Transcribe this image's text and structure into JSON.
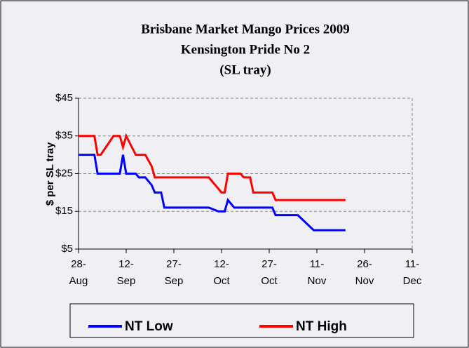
{
  "chart_data": {
    "type": "line",
    "title": [
      "Brisbane Market Mango Prices 2009",
      "Kensington Pride No 2",
      "(SL tray)"
    ],
    "ylabel": "$ per SL tray",
    "xlim": [
      "2009-08-28",
      "2009-12-11"
    ],
    "xticks": [
      {
        "value": "2009-08-28",
        "label": "28-Aug"
      },
      {
        "value": "2009-09-12",
        "label": "12-Sep"
      },
      {
        "value": "2009-09-27",
        "label": "27-Sep"
      },
      {
        "value": "2009-10-12",
        "label": "12-Oct"
      },
      {
        "value": "2009-10-27",
        "label": "27-Oct"
      },
      {
        "value": "2009-11-11",
        "label": "11-Nov"
      },
      {
        "value": "2009-11-26",
        "label": "26-Nov"
      },
      {
        "value": "2009-12-11",
        "label": "11-Dec"
      }
    ],
    "ylim": [
      5,
      45
    ],
    "yticks": [
      {
        "value": 5,
        "label": "$5"
      },
      {
        "value": 15,
        "label": "$15"
      },
      {
        "value": 25,
        "label": "$25"
      },
      {
        "value": 35,
        "label": "$35"
      },
      {
        "value": 45,
        "label": "$45"
      }
    ],
    "grid": true,
    "legend": "bottom",
    "series": [
      {
        "name": "NT Low",
        "color": "#0000ff",
        "x": [
          "2009-08-28",
          "2009-09-02",
          "2009-09-03",
          "2009-09-10",
          "2009-09-11",
          "2009-09-12",
          "2009-09-15",
          "2009-09-16",
          "2009-09-18",
          "2009-09-20",
          "2009-09-21",
          "2009-09-23",
          "2009-09-24",
          "2009-10-08",
          "2009-10-11",
          "2009-10-13",
          "2009-10-14",
          "2009-10-16",
          "2009-10-28",
          "2009-10-29",
          "2009-11-05",
          "2009-11-10",
          "2009-11-20"
        ],
        "values": [
          30,
          30,
          25,
          25,
          30,
          25,
          25,
          24,
          24,
          22,
          20,
          20,
          16,
          16,
          15,
          15,
          18,
          16,
          16,
          14,
          14,
          10,
          10
        ]
      },
      {
        "name": "NT High",
        "color": "#ff0000",
        "x": [
          "2009-08-28",
          "2009-09-02",
          "2009-09-03",
          "2009-09-04",
          "2009-09-08",
          "2009-09-10",
          "2009-09-11",
          "2009-09-12",
          "2009-09-15",
          "2009-09-18",
          "2009-09-20",
          "2009-09-21",
          "2009-10-08",
          "2009-10-11",
          "2009-10-12",
          "2009-10-13",
          "2009-10-14",
          "2009-10-18",
          "2009-10-19",
          "2009-10-21",
          "2009-10-22",
          "2009-10-28",
          "2009-10-29",
          "2009-11-20"
        ],
        "values": [
          35,
          35,
          30,
          30,
          35,
          35,
          32,
          35,
          30,
          30,
          27,
          24,
          24,
          21,
          20,
          20,
          25,
          25,
          24,
          24,
          20,
          20,
          18,
          18
        ]
      }
    ]
  }
}
